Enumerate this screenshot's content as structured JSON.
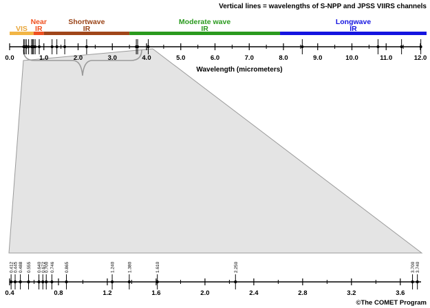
{
  "title": "Vertical lines = wavelengths of S-NPP and JPSS VIIRS channels",
  "copyright": "©The COMET Program",
  "bands": [
    {
      "label": "VIS",
      "start": 0.0,
      "end": 0.7,
      "color": "#f2b545",
      "text_color": "#e8a63a"
    },
    {
      "label": "Near IR",
      "start": 0.7,
      "end": 1.0,
      "color": "#f05020",
      "text_color": "#f05020"
    },
    {
      "label": "Shortwave IR",
      "start": 1.0,
      "end": 3.5,
      "color": "#a0461a",
      "text_color": "#9a4418"
    },
    {
      "label": "Moderate wave IR",
      "start": 3.5,
      "end": 7.9,
      "color": "#2a9a1e",
      "text_color": "#2a9a1e"
    },
    {
      "label": "Longwave IR",
      "start": 7.9,
      "end": 12.2,
      "color": "#1414e0",
      "text_color": "#1414e0"
    }
  ],
  "top_axis": {
    "label": "Wavelength (micrometers)",
    "ticks": [
      0.0,
      1.0,
      2.0,
      3.0,
      4.0,
      5.0,
      6.0,
      7.0,
      8.0,
      9.0,
      10.0,
      11.0,
      12.0
    ],
    "tick_labels": [
      "0.0",
      "1.0",
      "2.0",
      "3.0",
      "4.0",
      "5.0",
      "6.0",
      "7.0",
      "8.0",
      "9.0",
      "10.0",
      "11.0",
      "12.0"
    ],
    "channels": [
      0.412,
      0.445,
      0.488,
      0.555,
      0.64,
      0.672,
      0.7,
      0.746,
      0.865,
      1.24,
      1.38,
      1.61,
      2.25,
      3.7,
      3.74,
      4.05,
      8.55,
      10.763,
      11.45,
      12.013
    ]
  },
  "zoom_axis": {
    "ticks": [
      0.4,
      0.8,
      1.2,
      1.6,
      2.0,
      2.4,
      2.8,
      3.2,
      3.6
    ],
    "tick_labels": [
      "0.4",
      "0.8",
      "1.2",
      "1.6",
      "2.0",
      "2.4",
      "2.8",
      "3.2",
      "3.6"
    ],
    "channels": [
      0.412,
      0.445,
      0.488,
      0.555,
      0.64,
      0.672,
      0.7,
      0.746,
      0.865,
      1.24,
      1.38,
      1.61,
      2.25,
      3.7,
      3.74
    ],
    "channel_labels": [
      "0.412",
      "0.445",
      "0.488",
      "0.555",
      "0.640",
      "0.672",
      "0.700",
      "0.746",
      "0.865",
      "1.240",
      "1.380",
      "1.610",
      "2.250",
      "3.700",
      "3.740"
    ]
  }
}
